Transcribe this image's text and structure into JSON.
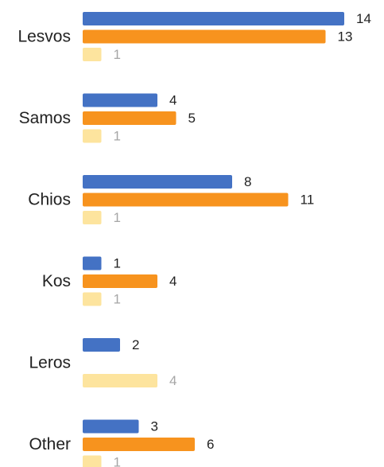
{
  "chart_data": {
    "type": "bar",
    "orientation": "horizontal",
    "categories": [
      "Lesvos",
      "Samos",
      "Chios",
      "Kos",
      "Leros",
      "Other"
    ],
    "series": [
      {
        "values": [
          14,
          4,
          8,
          1,
          2,
          3
        ],
        "color": "#4472c4"
      },
      {
        "values": [
          13,
          5,
          11,
          4,
          null,
          6
        ],
        "color": "#f7931e"
      },
      {
        "values": [
          1,
          1,
          1,
          1,
          4,
          1
        ],
        "color": "#fde49e"
      }
    ],
    "value_label_colors": [
      "#222222",
      "#222222",
      "#a6a6a6"
    ],
    "data_labels": true,
    "grid": false,
    "legend": "none",
    "xlim": [
      0,
      14
    ]
  }
}
